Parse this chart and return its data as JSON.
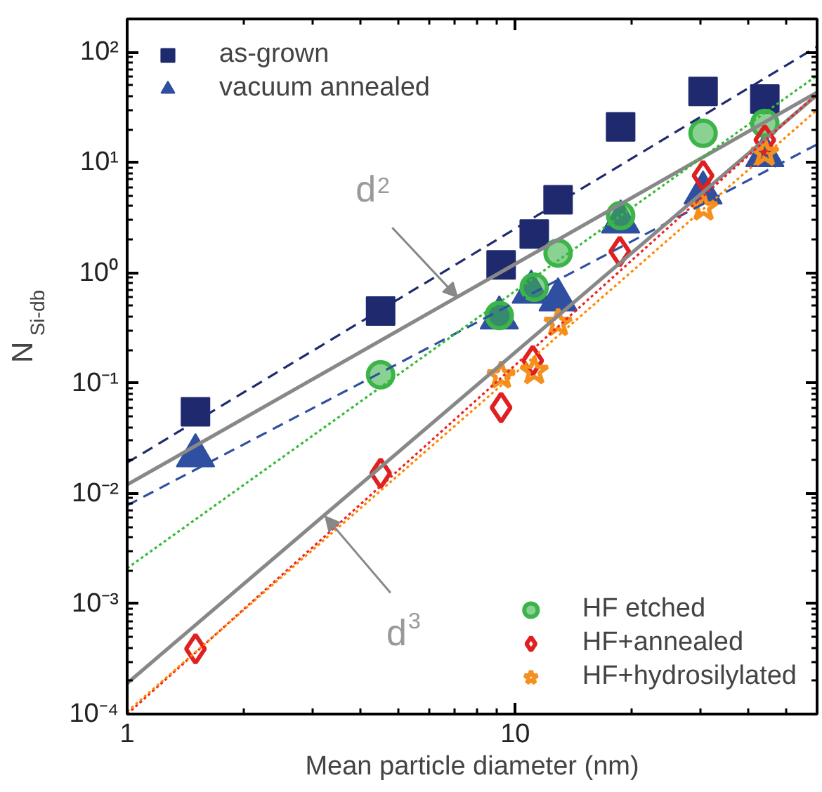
{
  "chart_data": {
    "type": "scatter",
    "xlabel": "Mean particle diameter (nm)",
    "ylabel": "N$_{Si-db}$",
    "log": "xy",
    "xlim": [
      1,
      60
    ],
    "ylim": [
      0.0001,
      200
    ],
    "xticks": [
      1,
      10
    ],
    "yticks": [
      {
        "value": 0.0001,
        "label": "10⁻⁴"
      },
      {
        "value": 0.001,
        "label": "10⁻³"
      },
      {
        "value": 0.01,
        "label": "10⁻²"
      },
      {
        "value": 0.1,
        "label": "10⁻¹"
      },
      {
        "value": 1,
        "label": "10⁰"
      },
      {
        "value": 10,
        "label": "10¹"
      },
      {
        "value": 100,
        "label": "10²"
      }
    ],
    "legend": "bottom right",
    "series": [
      {
        "name": "as-grown",
        "color": "#1f2a6e",
        "marker": "square",
        "x": [
          1.5,
          4.5,
          9.2,
          11.2,
          12.9,
          18.7,
          30.5,
          44
        ],
        "values": [
          0.055,
          0.45,
          1.18,
          2.25,
          4.6,
          21,
          44,
          37.6
        ]
      },
      {
        "name": "vacuum annealed",
        "color": "#2f4fa0",
        "marker": "triangle",
        "x": [
          1.5,
          9.1,
          11.0,
          12.9,
          18.7,
          30.5,
          44
        ],
        "values": [
          0.022,
          0.39,
          0.67,
          0.57,
          2.9,
          5.3,
          11.6
        ]
      },
      {
        "name": "HF etched",
        "color": "#3cb44a",
        "marker": "circle",
        "x": [
          4.5,
          9.1,
          11.2,
          12.9,
          18.7,
          30.5,
          44
        ],
        "values": [
          0.119,
          0.41,
          0.74,
          1.51,
          3.3,
          18.4,
          22.6
        ]
      },
      {
        "name": "HF+annealed",
        "color": "#e02020",
        "marker": "diamond",
        "x": [
          1.5,
          4.5,
          9.2,
          11.1,
          18.6,
          30.5,
          44
        ],
        "values": [
          0.00039,
          0.0152,
          0.06,
          0.16,
          1.56,
          7.6,
          16
        ]
      },
      {
        "name": "HF+hydrosilylated",
        "color": "#f39020",
        "marker": "star",
        "x": [
          9.2,
          11.2,
          12.9,
          30.6,
          44
        ],
        "values": [
          0.117,
          0.128,
          0.35,
          3.9,
          12.2
        ]
      },
      {
        "type": "line",
        "color": "#1f2a6e",
        "line_style": "dashed",
        "x": [
          1,
          60
        ],
        "values": [
          0.019,
          112
        ]
      },
      {
        "type": "line",
        "color": "#2f4fa0",
        "line_style": "dashed",
        "x": [
          1,
          60
        ],
        "values": [
          0.0078,
          14.6
        ]
      },
      {
        "type": "line",
        "color": "#888888",
        "line_style": "solid",
        "x": [
          1,
          60
        ],
        "values": [
          0.012,
          43.2
        ]
      },
      {
        "type": "line",
        "color": "#888888",
        "line_style": "solid",
        "x": [
          1,
          60
        ],
        "values": [
          0.00019,
          41
        ]
      },
      {
        "type": "line",
        "color": "#33bb33",
        "line_style": "dotted",
        "x": [
          1,
          60
        ],
        "values": [
          0.0021,
          61.5
        ]
      },
      {
        "type": "line",
        "color": "#ee2222",
        "line_style": "dotted",
        "x": [
          1,
          60
        ],
        "values": [
          0.0001,
          42
        ]
      },
      {
        "type": "line",
        "color": "#ff8800",
        "line_style": "dotted",
        "x": [
          1,
          60
        ],
        "values": [
          0.000105,
          30
        ]
      }
    ],
    "annotations": [
      {
        "text": "d$^{2}$",
        "x": 7.1,
        "y": 0.6
      },
      {
        "text": "d$^{3}$",
        "x": 3.24,
        "y": 0.0062
      }
    ]
  }
}
